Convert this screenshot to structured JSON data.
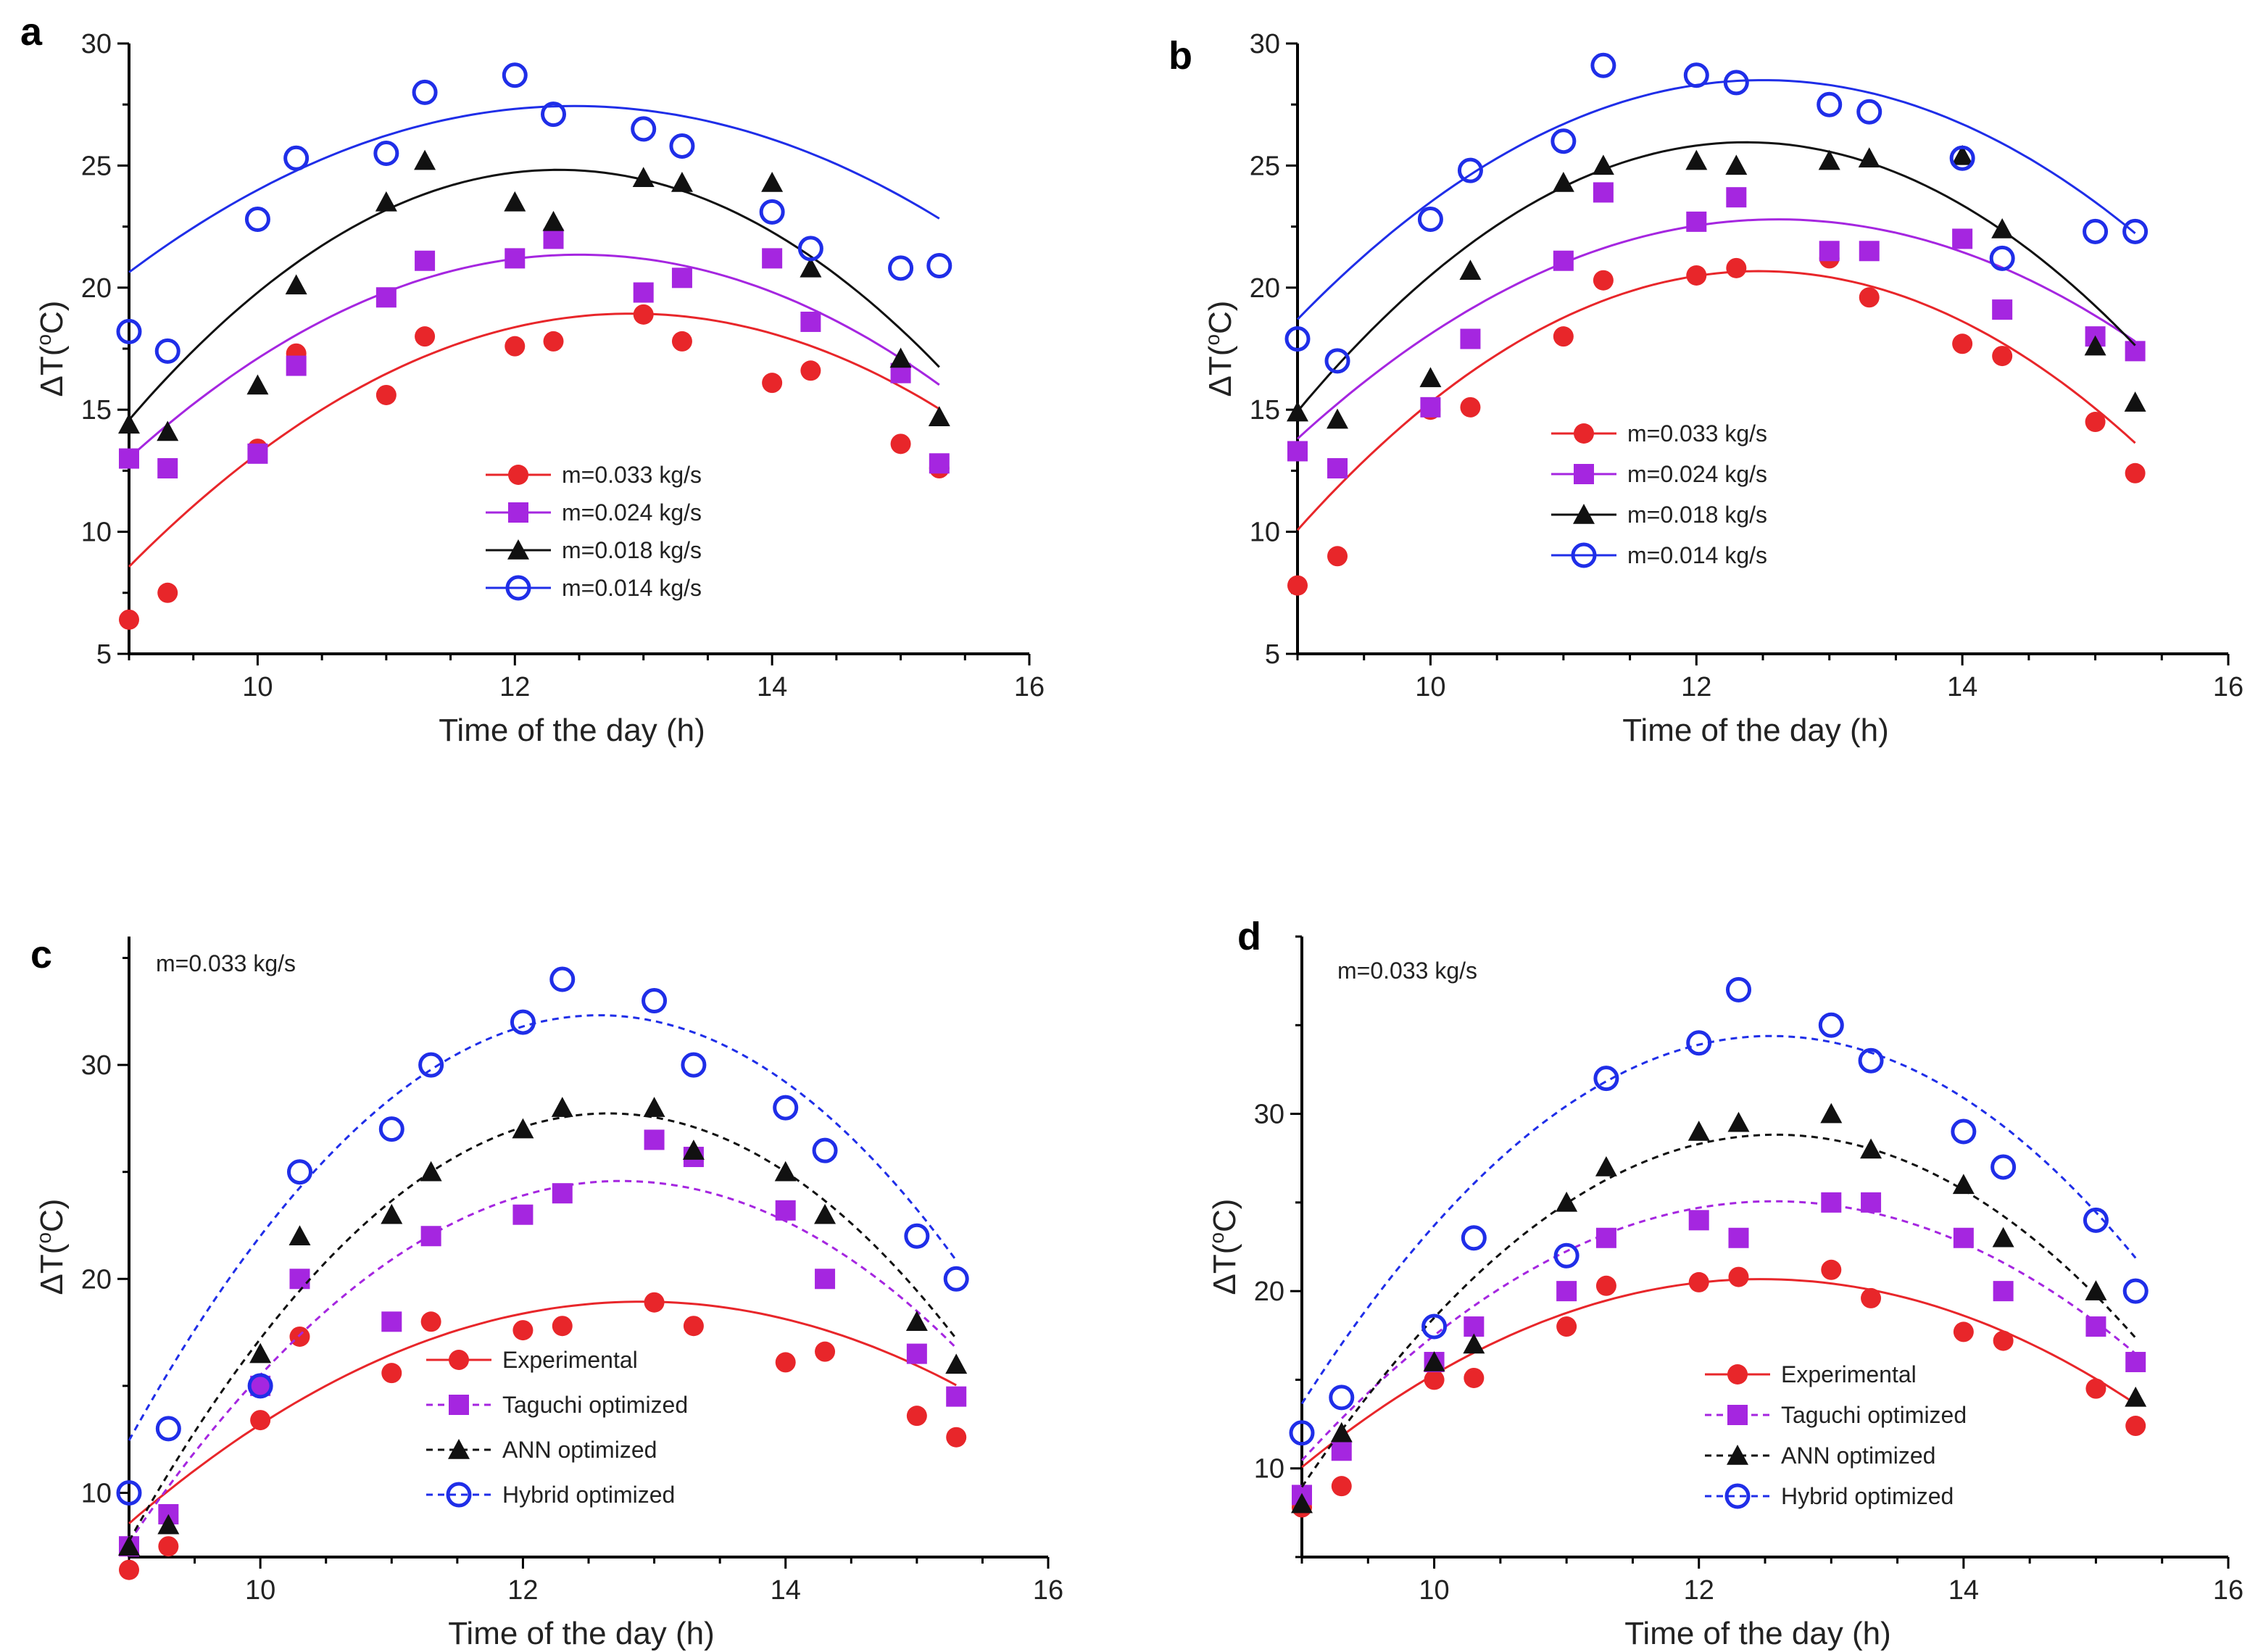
{
  "figure": {
    "panels": [
      "a",
      "b",
      "c",
      "d"
    ]
  },
  "chart_data": [
    {
      "id": "a",
      "type": "scatter",
      "panel_label": "a",
      "xlabel": "Time of the day (h)",
      "ylabel": "ΔT(°C)",
      "ylabel_parts": {
        "delta": "ΔT(",
        "sup": "o",
        "unit": "C)"
      },
      "xlim": [
        9,
        16
      ],
      "ylim": [
        5,
        30
      ],
      "xticks": [
        10,
        12,
        14,
        16
      ],
      "yticks": [
        5,
        10,
        15,
        20,
        25,
        30
      ],
      "annotation": "",
      "legend_position": "center",
      "series": [
        {
          "name": "m=0.033 kg/s",
          "marker": "filled-circle",
          "color": "#e8262a",
          "line": "solid",
          "x": [
            9,
            9.3,
            10,
            10.3,
            11,
            11.3,
            12,
            12.3,
            13,
            13.3,
            14,
            14.3,
            15,
            15.3
          ],
          "y": [
            6.4,
            7.5,
            13.4,
            17.3,
            15.6,
            18.0,
            17.6,
            17.8,
            18.9,
            17.8,
            16.1,
            16.6,
            13.6,
            12.6
          ],
          "fit": [
            -0.68,
            17.55,
            -94.3
          ],
          "fit_range": [
            9,
            15.3
          ]
        },
        {
          "name": "m=0.024 kg/s",
          "marker": "filled-square",
          "color": "#a526e0",
          "line": "solid",
          "x": [
            9,
            9.3,
            10,
            10.3,
            11,
            11.3,
            12,
            12.3,
            13,
            13.3,
            14,
            14.3,
            15,
            15.3
          ],
          "y": [
            13.0,
            12.6,
            13.2,
            16.8,
            19.6,
            21.1,
            21.2,
            22.0,
            19.8,
            20.4,
            21.2,
            18.6,
            16.5,
            12.8
          ],
          "fit": [
            -0.68,
            17.0,
            -84.9
          ],
          "fit_range": [
            9,
            15.3
          ]
        },
        {
          "name": "m=0.018 kg/s",
          "marker": "filled-triangle",
          "color": "#111111",
          "line": "solid",
          "x": [
            9,
            9.3,
            10,
            10.3,
            11,
            11.3,
            12,
            12.3,
            13,
            13.3,
            14,
            14.3,
            15,
            15.3
          ],
          "y": [
            14.4,
            14.1,
            16.0,
            20.1,
            23.5,
            25.2,
            23.5,
            22.7,
            24.5,
            24.3,
            24.3,
            20.8,
            17.1,
            14.7
          ],
          "fit": [
            -0.92,
            22.7,
            -115.2
          ],
          "fit_range": [
            9,
            15.3
          ]
        },
        {
          "name": "m=0.014 kg/s",
          "marker": "open-circle",
          "color": "#1f2ee8",
          "line": "solid",
          "x": [
            9,
            9.3,
            10,
            10.3,
            11,
            11.3,
            12,
            12.3,
            13,
            13.3,
            14,
            14.3,
            15,
            15.3
          ],
          "y": [
            18.2,
            17.4,
            22.8,
            25.3,
            25.5,
            28.0,
            28.7,
            27.1,
            26.5,
            25.8,
            23.1,
            21.6,
            20.8,
            20.9
          ],
          "fit": [
            -0.57,
            14.2,
            -61.0
          ],
          "fit_range": [
            9,
            15.3
          ]
        }
      ]
    },
    {
      "id": "b",
      "type": "scatter",
      "panel_label": "b",
      "xlabel": "Time of the day (h)",
      "ylabel": "ΔT(°C)",
      "ylabel_parts": {
        "delta": "ΔT(",
        "sup": "o",
        "unit": "C)"
      },
      "xlim": [
        9,
        16
      ],
      "ylim": [
        5,
        30
      ],
      "xticks": [
        10,
        12,
        14,
        16
      ],
      "yticks": [
        5,
        10,
        15,
        20,
        25,
        30
      ],
      "annotation": "",
      "legend_position": "center-right",
      "series": [
        {
          "name": "m=0.033 kg/s",
          "marker": "filled-circle",
          "color": "#e8262a",
          "line": "solid",
          "x": [
            9,
            9.3,
            10,
            10.3,
            11,
            11.3,
            12,
            12.3,
            13,
            13.3,
            14,
            14.3,
            15,
            15.3
          ],
          "y": [
            7.8,
            9.0,
            15.0,
            15.1,
            18.0,
            20.3,
            20.5,
            20.8,
            21.2,
            19.6,
            17.7,
            17.2,
            14.5,
            12.4
          ],
          "fit": [
            -0.88,
            21.95,
            -116.2
          ],
          "fit_range": [
            9,
            15.3
          ]
        },
        {
          "name": "m=0.024 kg/s",
          "marker": "filled-square",
          "color": "#a526e0",
          "line": "solid",
          "x": [
            9,
            9.3,
            10,
            10.3,
            11,
            11.3,
            12,
            12.3,
            13,
            13.3,
            14,
            14.3,
            15,
            15.3
          ],
          "y": [
            13.3,
            12.6,
            15.1,
            17.9,
            21.1,
            23.9,
            22.7,
            23.7,
            21.5,
            21.5,
            22.0,
            19.1,
            18.0,
            17.4
          ],
          "fit": [
            -0.69,
            17.4,
            -86.9
          ],
          "fit_range": [
            9,
            15.3
          ]
        },
        {
          "name": "m=0.018 kg/s",
          "marker": "filled-triangle",
          "color": "#111111",
          "line": "solid",
          "x": [
            9,
            9.3,
            10,
            10.3,
            11,
            11.3,
            12,
            12.3,
            13,
            13.3,
            14,
            14.3,
            15,
            15.3
          ],
          "y": [
            14.9,
            14.6,
            16.3,
            20.7,
            24.3,
            25.0,
            25.2,
            25.0,
            25.2,
            25.3,
            25.4,
            22.4,
            17.6,
            15.3
          ],
          "fit": [
            -0.97,
            24.0,
            -122.5
          ],
          "fit_range": [
            9,
            15.3
          ]
        },
        {
          "name": "m=0.014 kg/s",
          "marker": "open-circle",
          "color": "#1f2ee8",
          "line": "solid",
          "x": [
            9,
            9.3,
            10,
            10.3,
            11,
            11.3,
            12,
            12.3,
            13,
            13.3,
            14,
            14.3,
            15,
            15.3
          ],
          "y": [
            17.9,
            17.0,
            22.8,
            24.8,
            26.0,
            29.1,
            28.7,
            28.4,
            27.5,
            27.2,
            25.3,
            21.2,
            22.3,
            22.3
          ],
          "fit": [
            -0.8,
            20.0,
            -96.5
          ],
          "fit_range": [
            9,
            15.3
          ]
        }
      ]
    },
    {
      "id": "c",
      "type": "scatter",
      "panel_label": "c",
      "xlabel": "Time of the day (h)",
      "ylabel": "ΔT(°C)",
      "ylabel_parts": {
        "delta": "ΔT(",
        "sup": "o",
        "unit": "C)"
      },
      "xlim": [
        9,
        16
      ],
      "ylim": [
        7,
        36
      ],
      "xticks": [
        10,
        12,
        14,
        16
      ],
      "yticks": [
        10,
        20,
        30
      ],
      "annotation": "m=0.033 kg/s",
      "legend_position": "bottom-center",
      "series": [
        {
          "name": "Experimental",
          "marker": "filled-circle",
          "color": "#e8262a",
          "line": "solid",
          "x": [
            9,
            9.3,
            10,
            10.3,
            11,
            11.3,
            12,
            12.3,
            13,
            13.3,
            14,
            14.3,
            15,
            15.3
          ],
          "y": [
            6.4,
            7.5,
            13.4,
            17.3,
            15.6,
            18.0,
            17.6,
            17.8,
            18.9,
            17.8,
            16.1,
            16.6,
            13.6,
            12.6
          ],
          "fit": [
            -0.68,
            17.55,
            -94.3
          ],
          "fit_range": [
            9,
            15.3
          ]
        },
        {
          "name": "Taguchi optimized",
          "marker": "filled-square",
          "color": "#a526e0",
          "line": "dashed",
          "x": [
            9,
            9.3,
            10,
            10.3,
            11,
            11.3,
            12,
            12.3,
            13,
            13.3,
            14,
            14.3,
            15,
            15.3
          ],
          "y": [
            7.5,
            9.0,
            15.0,
            20.0,
            18.0,
            22.0,
            23.0,
            24.0,
            26.5,
            25.7,
            23.2,
            20.0,
            16.5,
            14.5
          ],
          "fit": [
            -1.2,
            30.6,
            -170.5
          ],
          "fit_range": [
            9,
            15.3
          ]
        },
        {
          "name": "ANN optimized",
          "marker": "filled-triangle",
          "color": "#111111",
          "line": "dashed",
          "x": [
            9,
            9.3,
            10,
            10.3,
            11,
            11.3,
            12,
            12.3,
            13,
            13.3,
            14,
            14.3,
            15,
            15.3
          ],
          "y": [
            7.5,
            8.5,
            16.5,
            22.0,
            23.0,
            25.0,
            27.0,
            28.0,
            28.0,
            26.0,
            25.0,
            23.0,
            18.0,
            16.0
          ],
          "fit": [
            -1.5,
            37.95,
            -212.3
          ],
          "fit_range": [
            9,
            15.3
          ]
        },
        {
          "name": "Hybrid optimized",
          "marker": "open-circle",
          "color": "#1f2ee8",
          "line": "dashed",
          "x": [
            9,
            9.3,
            10,
            10.3,
            11,
            11.3,
            12,
            12.3,
            13,
            13.3,
            14,
            14.3,
            15,
            15.3
          ],
          "y": [
            10.0,
            13.0,
            15.0,
            25.0,
            27.0,
            30.0,
            32.0,
            34.0,
            33.0,
            30.0,
            28.0,
            26.0,
            22.0,
            20.0
          ],
          "fit": [
            -1.55,
            39.0,
            -213.0
          ],
          "fit_range": [
            9,
            15.3
          ]
        }
      ]
    },
    {
      "id": "d",
      "type": "scatter",
      "panel_label": "d",
      "xlabel": "Time of the day (h)",
      "ylabel": "ΔT(°C)",
      "ylabel_parts": {
        "delta": "ΔT(",
        "sup": "o",
        "unit": "C)"
      },
      "xlim": [
        9,
        16
      ],
      "ylim": [
        5,
        40
      ],
      "xticks": [
        10,
        12,
        14,
        16
      ],
      "yticks": [
        10,
        20,
        30
      ],
      "annotation": "m=0.033 kg/s",
      "legend_position": "bottom-center",
      "series": [
        {
          "name": "Experimental",
          "marker": "filled-circle",
          "color": "#e8262a",
          "line": "solid",
          "x": [
            9,
            9.3,
            10,
            10.3,
            11,
            11.3,
            12,
            12.3,
            13,
            13.3,
            14,
            14.3,
            15,
            15.3
          ],
          "y": [
            7.8,
            9.0,
            15.0,
            15.1,
            18.0,
            20.3,
            20.5,
            20.8,
            21.2,
            19.6,
            17.7,
            17.2,
            14.5,
            12.4
          ],
          "fit": [
            -0.88,
            21.95,
            -116.2
          ],
          "fit_range": [
            9,
            15.3
          ]
        },
        {
          "name": "Taguchi optimized",
          "marker": "filled-square",
          "color": "#a526e0",
          "line": "dashed",
          "x": [
            9,
            9.3,
            10,
            10.3,
            11,
            11.3,
            12,
            12.3,
            13,
            13.3,
            14,
            14.3,
            15,
            15.3
          ],
          "y": [
            8.5,
            11.0,
            16.0,
            18.0,
            20.0,
            23.0,
            24.0,
            23.0,
            25.0,
            25.0,
            23.0,
            20.0,
            18.0,
            16.0
          ],
          "fit": [
            -1.15,
            28.9,
            -156.5
          ],
          "fit_range": [
            9,
            15.3
          ]
        },
        {
          "name": "ANN optimized",
          "marker": "filled-triangle",
          "color": "#111111",
          "line": "dashed",
          "x": [
            9,
            9.3,
            10,
            10.3,
            11,
            11.3,
            12,
            12.3,
            13,
            13.3,
            14,
            14.3,
            15,
            15.3
          ],
          "y": [
            8.0,
            12.0,
            16.0,
            17.0,
            25.0,
            27.0,
            29.0,
            29.5,
            30.0,
            28.0,
            26.0,
            23.0,
            20.0,
            14.0
          ],
          "fit": [
            -1.55,
            39.0,
            -216.5
          ],
          "fit_range": [
            9,
            15.3
          ]
        },
        {
          "name": "Hybrid optimized",
          "marker": "open-circle",
          "color": "#1f2ee8",
          "line": "dashed",
          "x": [
            9,
            9.3,
            10,
            10.3,
            11,
            11.3,
            12,
            12.3,
            13,
            13.3,
            14,
            14.3,
            15,
            15.3
          ],
          "y": [
            12.0,
            14.0,
            18.0,
            23.0,
            22.0,
            32.0,
            34.0,
            37.0,
            35.0,
            33.0,
            29.0,
            27.0,
            24.0,
            20.0
          ],
          "fit": [
            -1.65,
            41.4,
            -225.3
          ],
          "fit_range": [
            9,
            15.3
          ]
        }
      ]
    }
  ]
}
